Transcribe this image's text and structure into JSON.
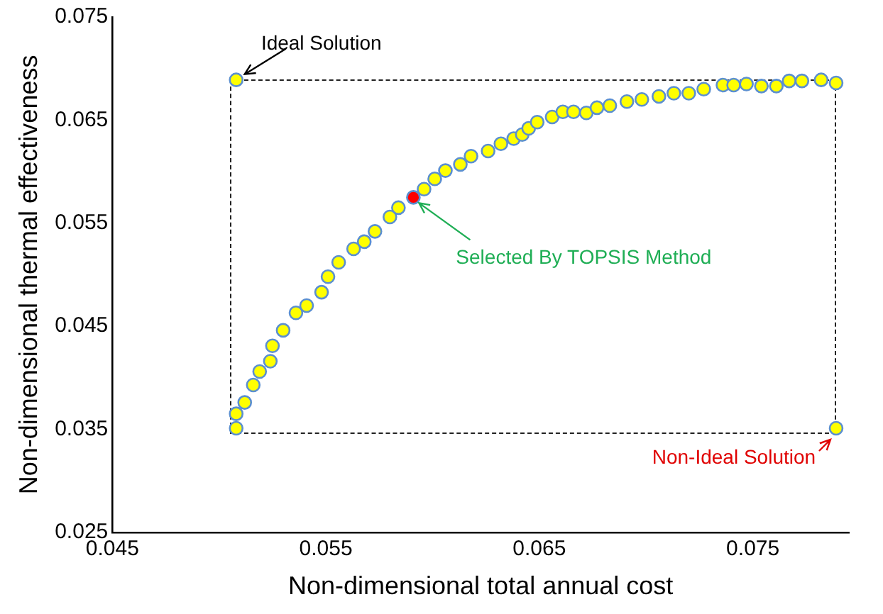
{
  "chart_data": {
    "type": "scatter",
    "xlabel": "Non-dimensional total annual cost",
    "ylabel": "Non-dimensional thermal effectiveness",
    "xlim": [
      0.045,
      0.0795
    ],
    "xticks": [
      0.045,
      0.055,
      0.065,
      0.075
    ],
    "ylim": [
      0.025,
      0.075
    ],
    "yticks": [
      0.025,
      0.035,
      0.045,
      0.055,
      0.065,
      0.075
    ],
    "grid": false,
    "legend": false,
    "marker": "circle",
    "series": [
      {
        "color": "#ffff00",
        "x": [
          0.0508,
          0.0508,
          0.0508,
          0.0512,
          0.0516,
          0.0519,
          0.0524,
          0.0525,
          0.053,
          0.0536,
          0.0541,
          0.0548,
          0.0551,
          0.0556,
          0.0563,
          0.0568,
          0.0573,
          0.058,
          0.0584,
          0.0596,
          0.0601,
          0.0606,
          0.0613,
          0.0618,
          0.0626,
          0.0632,
          0.0638,
          0.0642,
          0.0645,
          0.0649,
          0.0656,
          0.0661,
          0.0666,
          0.0672,
          0.0677,
          0.0683,
          0.0691,
          0.0698,
          0.0706,
          0.0713,
          0.072,
          0.0727,
          0.0736,
          0.0741,
          0.0747,
          0.0754,
          0.0761,
          0.0767,
          0.0773,
          0.0782,
          0.0789,
          0.0789
        ],
        "values": [
          0.0689,
          0.0351,
          0.0365,
          0.0376,
          0.0393,
          0.0406,
          0.0416,
          0.0431,
          0.0446,
          0.0463,
          0.047,
          0.0483,
          0.0498,
          0.0512,
          0.0525,
          0.0532,
          0.0542,
          0.0556,
          0.0565,
          0.0583,
          0.0593,
          0.0601,
          0.0607,
          0.0615,
          0.062,
          0.0627,
          0.0632,
          0.0636,
          0.0642,
          0.0648,
          0.0653,
          0.0658,
          0.0658,
          0.0657,
          0.0662,
          0.0664,
          0.0668,
          0.067,
          0.0673,
          0.0676,
          0.0676,
          0.068,
          0.0684,
          0.0684,
          0.0685,
          0.0683,
          0.0683,
          0.0688,
          0.0688,
          0.0689,
          0.0686,
          0.0351
        ]
      },
      {
        "color": "#ff0000",
        "x": [
          0.0591
        ],
        "values": [
          0.0575
        ]
      }
    ],
    "annotations": [
      {
        "text": "Ideal Solution",
        "x": 0.0508,
        "y": 0.0689
      },
      {
        "text": "Selected By TOPSIS Method",
        "x": 0.0591,
        "y": 0.0575
      },
      {
        "text": "Non-Ideal Solution",
        "x": 0.0789,
        "y": 0.0351
      }
    ]
  }
}
